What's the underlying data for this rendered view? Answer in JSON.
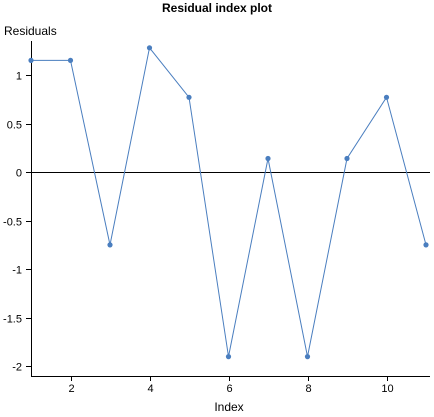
{
  "chart_data": {
    "type": "line",
    "title": "Residual index plot",
    "xlabel": "Index",
    "ylabel": "Residuals",
    "x": [
      1,
      2,
      3,
      4,
      5,
      6,
      7,
      8,
      9,
      10,
      11
    ],
    "series": [
      {
        "name": "Residuals",
        "values": [
          1.15,
          1.15,
          -0.75,
          1.28,
          0.77,
          -1.9,
          0.14,
          -1.9,
          0.14,
          0.77,
          -0.75
        ]
      }
    ],
    "xlim": [
      1,
      11.1
    ],
    "ylim": [
      -2.1,
      1.35
    ],
    "xticks": [
      2,
      4,
      6,
      8,
      10
    ],
    "yticks": [
      1,
      0.5,
      0,
      -0.5,
      -1,
      -1.5,
      -2
    ],
    "xtick_labels": [
      "2",
      "4",
      "6",
      "8",
      "10"
    ],
    "ytick_labels": [
      "1",
      "0.5",
      "0",
      "-0.5",
      "-1",
      "-1.5",
      "-2"
    ],
    "reference_line": 0,
    "grid": false,
    "legend": "none",
    "colors": {
      "series": "#4a7ebf",
      "axes": "#000000"
    }
  }
}
